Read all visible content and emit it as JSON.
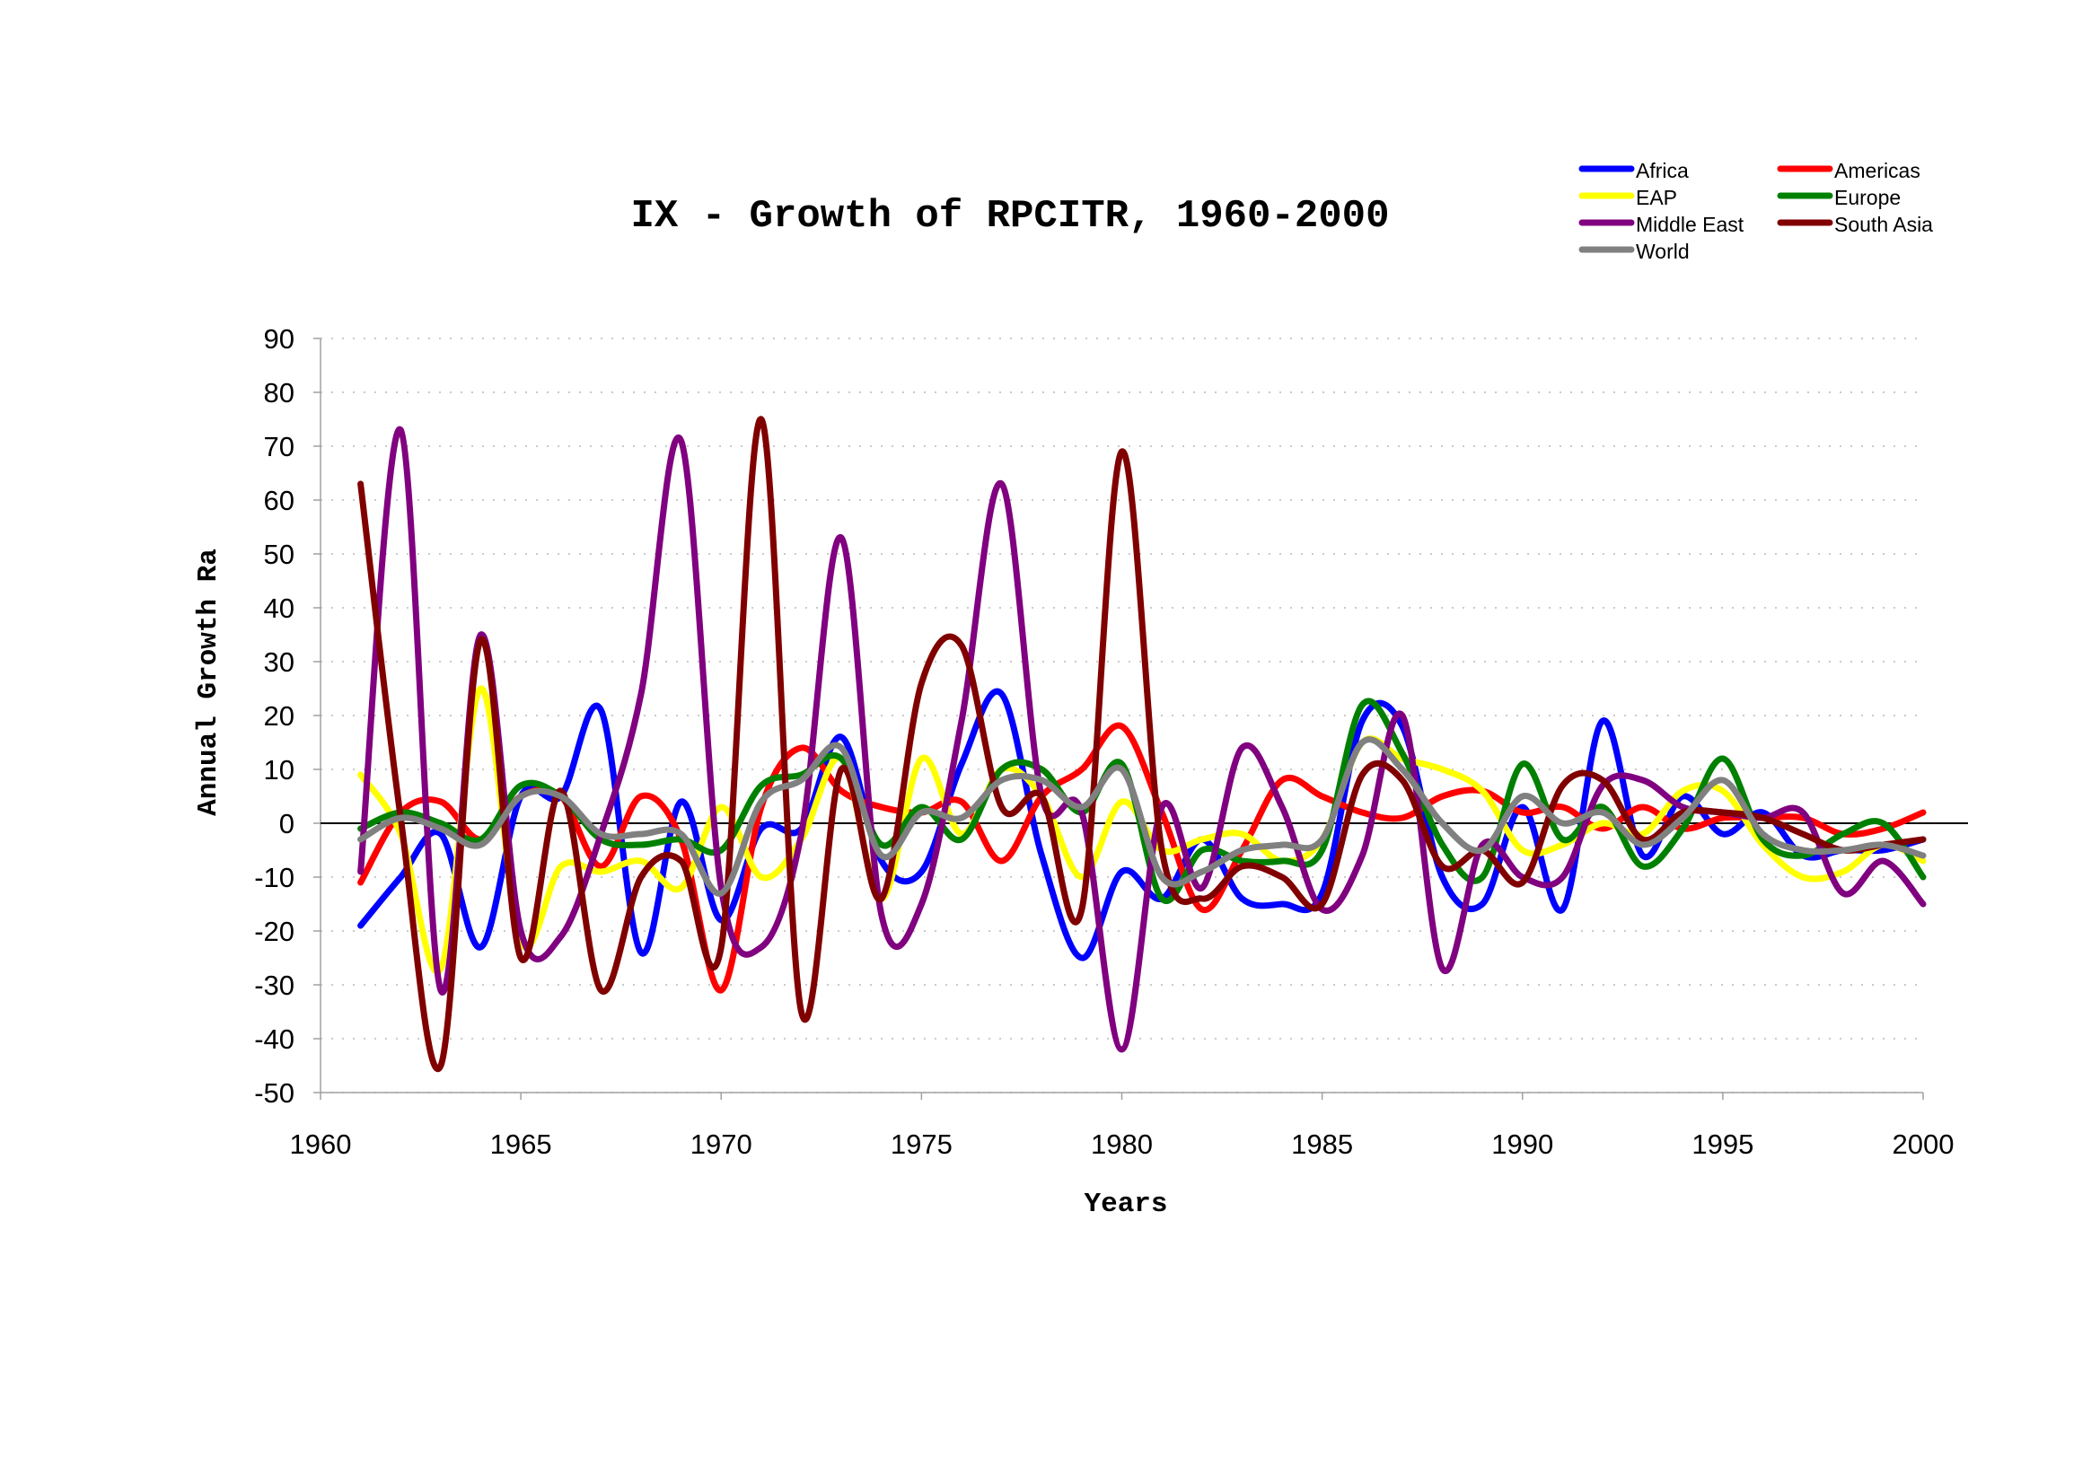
{
  "chart_data": {
    "type": "line",
    "title": "IX - Growth of RPCITR, 1960-2000",
    "xlabel": "Years",
    "ylabel": "Annual Growth Ra",
    "xlim": [
      1960,
      2000
    ],
    "ylim": [
      -50,
      90
    ],
    "x_ticks": [
      1960,
      1965,
      1970,
      1975,
      1980,
      1985,
      1990,
      1995,
      2000
    ],
    "y_ticks": [
      90,
      80,
      70,
      60,
      50,
      40,
      30,
      20,
      10,
      0,
      -10,
      -20,
      -30,
      -40,
      -50
    ],
    "grid": "horizontal dotted",
    "legend_position": "top-right",
    "x": [
      1961,
      1962,
      1963,
      1964,
      1965,
      1966,
      1967,
      1968,
      1969,
      1970,
      1971,
      1972,
      1973,
      1974,
      1975,
      1976,
      1977,
      1978,
      1979,
      1980,
      1981,
      1982,
      1983,
      1984,
      1985,
      1986,
      1987,
      1988,
      1989,
      1990,
      1991,
      1992,
      1993,
      1994,
      1995,
      1996,
      1997,
      1998,
      1999,
      2000
    ],
    "series": [
      {
        "name": "Africa",
        "color": "#0000ff",
        "values": [
          -19,
          -10,
          -2,
          -23,
          5,
          5,
          21,
          -24,
          4,
          -18,
          -1,
          -1,
          16,
          -7,
          -9,
          11,
          24,
          -6,
          -25,
          -9,
          -14,
          -3,
          -14,
          -15,
          -13,
          19,
          18,
          -10,
          -15,
          3,
          -16,
          19,
          -6,
          5,
          -2,
          2,
          -6,
          -5,
          -5,
          -3
        ]
      },
      {
        "name": "Americas",
        "color": "#ff0000",
        "values": [
          -11,
          2,
          4,
          -3,
          5,
          5,
          -8,
          5,
          -3,
          -31,
          3,
          14,
          6,
          3,
          2,
          4,
          -7,
          5,
          10,
          18,
          2,
          -16,
          -5,
          8,
          5,
          2,
          1,
          5,
          6,
          2,
          3,
          -1,
          3,
          -1,
          1,
          1,
          1,
          -2,
          -1,
          2
        ]
      },
      {
        "name": "EAP",
        "color": "#ffff00",
        "values": [
          9,
          -2,
          -27,
          25,
          -22,
          -8,
          -9,
          -7,
          -12,
          3,
          -10,
          -3,
          12,
          -14,
          12,
          -2,
          10,
          5,
          -10,
          4,
          -5,
          -3,
          -2,
          -7,
          -3,
          15,
          12,
          10,
          6,
          -5,
          -4,
          0,
          -2,
          6,
          6,
          -4,
          -10,
          -9,
          -4,
          -7
        ]
      },
      {
        "name": "Europe",
        "color": "#008000",
        "values": [
          -1,
          2,
          0,
          -3,
          7,
          5,
          -3,
          -4,
          -3,
          -5,
          7,
          9,
          12,
          -4,
          3,
          -3,
          10,
          10,
          2,
          11,
          -14,
          -5,
          -7,
          -7,
          -5,
          22,
          13,
          -4,
          -10,
          11,
          -3,
          3,
          -8,
          -1,
          12,
          -3,
          -6,
          -2,
          0,
          -10
        ]
      },
      {
        "name": "Middle East",
        "color": "#800080",
        "values": [
          -9,
          73,
          -31,
          35,
          -20,
          -21,
          -2,
          24,
          71,
          -12,
          -23,
          -2,
          53,
          -17,
          -15,
          19,
          63,
          5,
          2,
          -42,
          3,
          -12,
          14,
          3,
          -16,
          -6,
          20,
          -27,
          -4,
          -10,
          -10,
          7,
          8,
          3,
          2,
          1,
          2,
          -13,
          -7,
          -15
        ]
      },
      {
        "name": "South Asia",
        "color": "#800000",
        "values": [
          63,
          1,
          -45,
          34,
          -25,
          6,
          -31,
          -10,
          -7,
          -23,
          75,
          -35,
          10,
          -14,
          26,
          33,
          3,
          5,
          -16,
          69,
          -5,
          -14,
          -8,
          -10,
          -15,
          9,
          8,
          -8,
          -5,
          -11,
          7,
          8,
          -3,
          2,
          2,
          1,
          -2,
          -5,
          -4,
          -3
        ]
      },
      {
        "name": "World",
        "color": "#808080",
        "values": [
          -3,
          1,
          -1,
          -4,
          5,
          5,
          -2,
          -2,
          -2,
          -13,
          4,
          8,
          14,
          -6,
          2,
          1,
          8,
          8,
          3,
          10,
          -10,
          -9,
          -5,
          -4,
          -3,
          15,
          10,
          0,
          -5,
          5,
          0,
          2,
          -4,
          1,
          8,
          -2,
          -5,
          -5,
          -4,
          -6
        ]
      }
    ]
  }
}
